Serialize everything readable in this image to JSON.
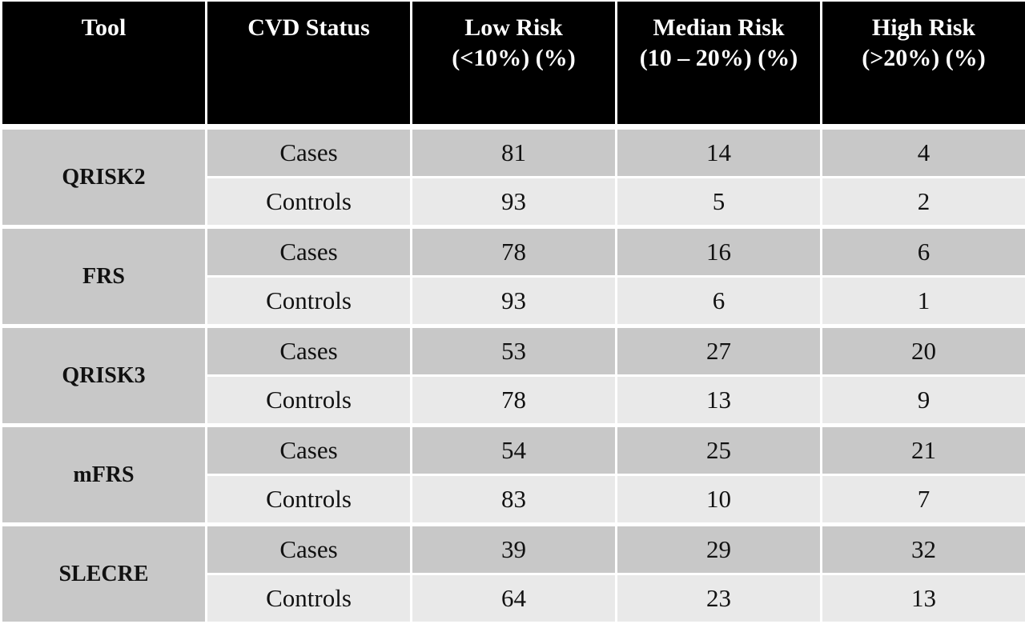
{
  "table": {
    "header": {
      "tool": "Tool",
      "cvd_status": "CVD Status",
      "low_risk_line1": "Low Risk",
      "low_risk_line2": "(<10%) (%)",
      "median_risk_line1": "Median Risk",
      "median_risk_line2": "(10 – 20%) (%)",
      "high_risk_line1": "High Risk",
      "high_risk_line2": "(>20%) (%)"
    },
    "groups": [
      {
        "tool": "QRISK2",
        "rows": [
          {
            "status": "Cases",
            "low": "81",
            "median": "14",
            "high": "4"
          },
          {
            "status": "Controls",
            "low": "93",
            "median": "5",
            "high": "2"
          }
        ]
      },
      {
        "tool": "FRS",
        "rows": [
          {
            "status": "Cases",
            "low": "78",
            "median": "16",
            "high": "6"
          },
          {
            "status": "Controls",
            "low": "93",
            "median": "6",
            "high": "1"
          }
        ]
      },
      {
        "tool": "QRISK3",
        "rows": [
          {
            "status": "Cases",
            "low": "53",
            "median": "27",
            "high": "20"
          },
          {
            "status": "Controls",
            "low": "78",
            "median": "13",
            "high": "9"
          }
        ]
      },
      {
        "tool": "mFRS",
        "rows": [
          {
            "status": "Cases",
            "low": "54",
            "median": "25",
            "high": "21"
          },
          {
            "status": "Controls",
            "low": "83",
            "median": "10",
            "high": "7"
          }
        ]
      },
      {
        "tool": "SLECRE",
        "rows": [
          {
            "status": "Cases",
            "low": "39",
            "median": "29",
            "high": "32"
          },
          {
            "status": "Controls",
            "low": "64",
            "median": "23",
            "high": "13"
          }
        ]
      }
    ],
    "colors": {
      "header_bg": "#000000",
      "header_text": "#ffffff",
      "cases_row_bg": "#c8c8c8",
      "controls_row_bg": "#e9e9e9",
      "border": "#ffffff"
    }
  }
}
